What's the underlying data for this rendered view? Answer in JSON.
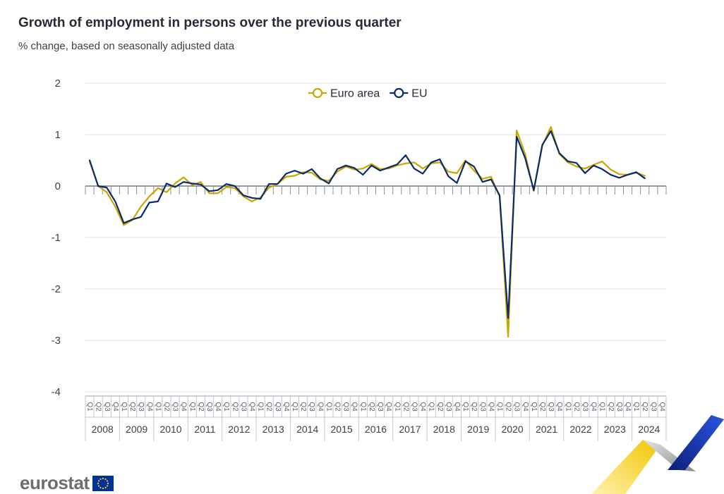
{
  "chart_data": {
    "type": "line",
    "title": "Growth of employment in persons over the previous quarter",
    "subtitle": "% change, based on seasonally adjusted data",
    "xlabel": "",
    "ylabel": "",
    "ylim": [
      -4,
      2
    ],
    "yticks": [
      "2",
      "1",
      "0",
      "-1",
      "-2",
      "-3",
      "-4"
    ],
    "grid": true,
    "legend_position": "top-center",
    "quarter_labels": [
      "Q1",
      "Q2",
      "Q3",
      "Q4"
    ],
    "years": [
      "2008",
      "2009",
      "2010",
      "2011",
      "2012",
      "2013",
      "2014",
      "2015",
      "2016",
      "2017",
      "2018",
      "2019",
      "2020",
      "2021",
      "2022",
      "2023",
      "2024"
    ],
    "series": [
      {
        "name": "Euro area",
        "color": "#c9a700",
        "values": [
          0.48,
          0.0,
          -0.12,
          -0.4,
          -0.76,
          -0.66,
          -0.4,
          -0.2,
          -0.04,
          -0.12,
          0.05,
          0.17,
          0.02,
          0.08,
          -0.14,
          -0.14,
          -0.02,
          -0.04,
          -0.2,
          -0.3,
          -0.22,
          -0.03,
          0.04,
          0.18,
          0.2,
          0.27,
          0.26,
          0.13,
          0.1,
          0.28,
          0.38,
          0.32,
          0.34,
          0.43,
          0.33,
          0.34,
          0.4,
          0.44,
          0.46,
          0.34,
          0.44,
          0.46,
          0.28,
          0.25,
          0.5,
          0.3,
          0.14,
          0.18,
          -0.2,
          -2.93,
          1.08,
          0.62,
          -0.1,
          0.78,
          1.15,
          0.62,
          0.46,
          0.38,
          0.34,
          0.41,
          0.48,
          0.32,
          0.23,
          0.22,
          0.26,
          0.2
        ],
        "start": "2008-Q1"
      },
      {
        "name": "EU",
        "color": "#0b2a6b",
        "values": [
          0.5,
          0.0,
          -0.03,
          -0.3,
          -0.72,
          -0.65,
          -0.6,
          -0.32,
          -0.3,
          0.05,
          -0.02,
          0.08,
          0.05,
          0.03,
          -0.1,
          -0.08,
          0.04,
          0.0,
          -0.18,
          -0.23,
          -0.25,
          0.04,
          0.04,
          0.24,
          0.3,
          0.24,
          0.33,
          0.15,
          0.05,
          0.33,
          0.4,
          0.35,
          0.22,
          0.4,
          0.3,
          0.36,
          0.42,
          0.6,
          0.34,
          0.24,
          0.46,
          0.52,
          0.19,
          0.06,
          0.48,
          0.38,
          0.08,
          0.13,
          -0.18,
          -2.57,
          0.96,
          0.54,
          -0.08,
          0.8,
          1.07,
          0.64,
          0.48,
          0.45,
          0.25,
          0.4,
          0.33,
          0.22,
          0.16,
          0.22,
          0.27,
          0.15
        ],
        "start": "2008-Q1"
      }
    ]
  },
  "branding": {
    "logo_text": "eurostat"
  },
  "colors": {
    "grid": "#dfe2ea",
    "axis": "#555a66",
    "text": "#262b38",
    "euro_area": "#c9a700",
    "eu": "#0b2a6b"
  }
}
